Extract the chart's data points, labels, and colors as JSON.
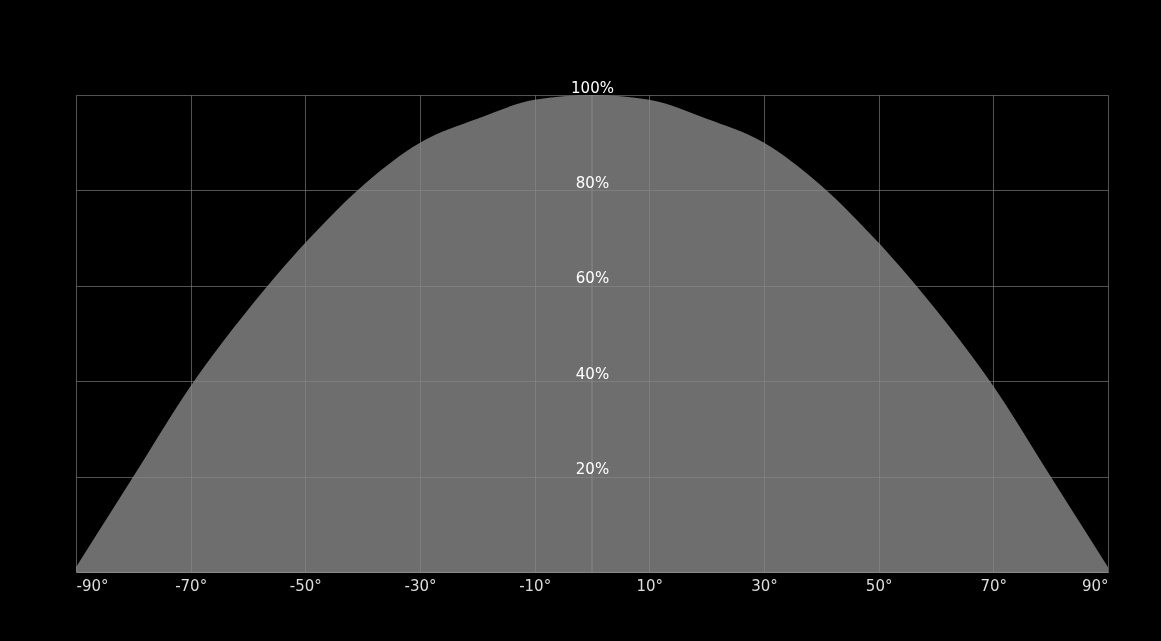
{
  "chart_data": {
    "type": "area",
    "x": [
      -90,
      -80,
      -70,
      -60,
      -50,
      -40,
      -30,
      -20,
      -10,
      0,
      10,
      20,
      30,
      40,
      50,
      60,
      70,
      80,
      90
    ],
    "values": [
      1,
      20,
      39,
      55,
      69,
      81,
      90,
      95,
      99,
      100,
      99,
      95,
      90,
      81,
      69,
      55,
      39,
      20,
      1
    ],
    "color": "#6e6e6e",
    "xlim": [
      -90,
      90
    ],
    "ylim": [
      0,
      100
    ],
    "xticks": [
      {
        "value": -90,
        "label": "-90°"
      },
      {
        "value": -70,
        "label": "-70°"
      },
      {
        "value": -50,
        "label": "-50°"
      },
      {
        "value": -30,
        "label": "-30°"
      },
      {
        "value": -10,
        "label": "-10°"
      },
      {
        "value": 10,
        "label": "10°"
      },
      {
        "value": 30,
        "label": "30°"
      },
      {
        "value": 50,
        "label": "50°"
      },
      {
        "value": 70,
        "label": "70°"
      },
      {
        "value": 90,
        "label": "90°"
      }
    ],
    "yticks": [
      {
        "value": 20,
        "label": "20%"
      },
      {
        "value": 40,
        "label": "40%"
      },
      {
        "value": 60,
        "label": "60%"
      },
      {
        "value": 80,
        "label": "80%"
      },
      {
        "value": 100,
        "label": "100%"
      }
    ],
    "grid": true,
    "ref_lines": [
      {
        "axis": "x",
        "value": 0,
        "label": null
      }
    ]
  }
}
